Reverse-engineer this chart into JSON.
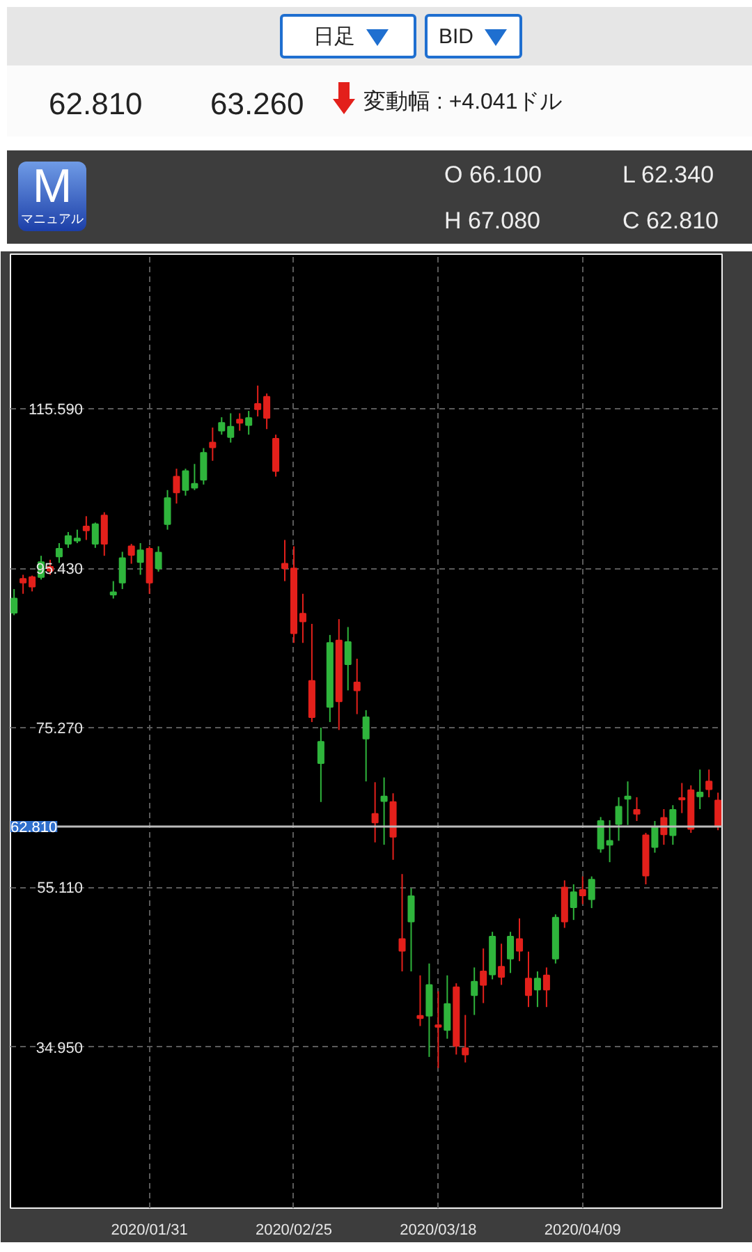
{
  "chart_data": {
    "type": "candlestick",
    "categories": [
      null,
      null,
      null,
      null,
      null,
      null,
      null,
      null,
      null,
      null,
      null,
      null,
      null,
      null,
      null,
      "2020/01/31",
      null,
      null,
      null,
      null,
      null,
      null,
      null,
      null,
      null,
      null,
      null,
      null,
      null,
      null,
      null,
      "2020/02/25",
      null,
      null,
      null,
      null,
      null,
      null,
      null,
      null,
      null,
      null,
      null,
      null,
      null,
      null,
      null,
      "2020/03/18",
      null,
      null,
      null,
      null,
      null,
      null,
      null,
      null,
      null,
      null,
      null,
      null,
      null,
      null,
      null,
      "2020/04/09",
      null,
      null,
      null,
      null,
      null,
      null,
      null,
      null,
      null,
      null,
      null,
      null,
      null,
      null,
      null
    ],
    "ohlc": [
      [
        89.8,
        92.8,
        89.5,
        91.6
      ],
      [
        94.1,
        94.6,
        92.2,
        93.6
      ],
      [
        94.3,
        94.5,
        92.5,
        93.1
      ],
      [
        94.3,
        97.0,
        94.0,
        96.2
      ],
      [
        95.6,
        96.5,
        94.6,
        95.1
      ],
      [
        96.9,
        98.6,
        96.1,
        97.9
      ],
      [
        98.5,
        100.0,
        98.0,
        99.5
      ],
      [
        98.9,
        100.3,
        98.6,
        99.2
      ],
      [
        100.7,
        102.0,
        99.0,
        100.2
      ],
      [
        98.5,
        101.2,
        98.0,
        101.0
      ],
      [
        102.1,
        102.5,
        97.0,
        98.5
      ],
      [
        92.1,
        93.8,
        91.6,
        92.4
      ],
      [
        93.6,
        97.5,
        92.8,
        96.7
      ],
      [
        98.2,
        98.5,
        96.0,
        97.1
      ],
      [
        96.2,
        98.6,
        94.6,
        97.7
      ],
      [
        97.9,
        98.2,
        92.2,
        93.6
      ],
      [
        95.4,
        98.2,
        95.0,
        97.4
      ],
      [
        101.0,
        105.3,
        100.3,
        104.3
      ],
      [
        107.0,
        108.0,
        103.6,
        105.0
      ],
      [
        105.3,
        108.0,
        104.6,
        107.7
      ],
      [
        105.6,
        108.6,
        105.3,
        106.1
      ],
      [
        106.6,
        110.6,
        106.0,
        110.0
      ],
      [
        111.3,
        113.2,
        109.0,
        110.7
      ],
      [
        112.8,
        114.5,
        112.3,
        113.8
      ],
      [
        112.0,
        115.0,
        111.3,
        113.3
      ],
      [
        114.2,
        115.0,
        112.8,
        113.8
      ],
      [
        113.5,
        115.3,
        112.3,
        114.4
      ],
      [
        116.2,
        118.5,
        114.6,
        115.5
      ],
      [
        117.1,
        117.5,
        113.0,
        114.4
      ],
      [
        111.8,
        112.3,
        107.0,
        107.7
      ],
      [
        96.0,
        99.0,
        93.8,
        95.4
      ],
      [
        95.4,
        98.2,
        86.0,
        87.2
      ],
      [
        89.7,
        92.2,
        86.0,
        88.7
      ],
      [
        81.2,
        88.4,
        76.0,
        76.6
      ],
      [
        70.8,
        75.3,
        65.9,
        73.5
      ],
      [
        77.9,
        87.0,
        76.0,
        86.0
      ],
      [
        86.3,
        89.0,
        75.0,
        78.6
      ],
      [
        83.3,
        88.0,
        80.0,
        86.1
      ],
      [
        81.0,
        84.0,
        77.0,
        80.0
      ],
      [
        73.9,
        77.5,
        68.5,
        76.6
      ],
      [
        64.4,
        68.4,
        60.8,
        63.3
      ],
      [
        66.0,
        69.0,
        60.5,
        66.6
      ],
      [
        65.9,
        67.0,
        58.6,
        61.5
      ],
      [
        48.6,
        56.8,
        44.5,
        47.1
      ],
      [
        50.8,
        55.0,
        44.5,
        54.0
      ],
      [
        38.9,
        44.0,
        37.6,
        38.6
      ],
      [
        38.9,
        45.5,
        33.7,
        42.8
      ],
      [
        37.7,
        42.0,
        32.3,
        37.5
      ],
      [
        37.1,
        44.0,
        36.0,
        40.4
      ],
      [
        42.5,
        43.0,
        34.0,
        35.1
      ],
      [
        34.8,
        39.0,
        33.0,
        34.0
      ],
      [
        41.5,
        45.0,
        39.0,
        43.2
      ],
      [
        44.5,
        47.4,
        40.5,
        42.8
      ],
      [
        44.1,
        49.5,
        43.5,
        48.9
      ],
      [
        45.1,
        48.0,
        42.8,
        43.8
      ],
      [
        46.1,
        49.5,
        44.3,
        48.9
      ],
      [
        48.6,
        51.2,
        45.8,
        47.1
      ],
      [
        43.6,
        47.0,
        40.0,
        41.5
      ],
      [
        42.2,
        44.5,
        40.0,
        43.6
      ],
      [
        44.0,
        45.0,
        40.0,
        42.2
      ],
      [
        46.1,
        51.7,
        45.5,
        51.3
      ],
      [
        55.1,
        56.0,
        50.0,
        50.8
      ],
      [
        52.6,
        55.5,
        51.0,
        54.5
      ],
      [
        54.8,
        56.5,
        53.0,
        54.1
      ],
      [
        53.6,
        56.5,
        52.5,
        56.1
      ],
      [
        60.0,
        64.0,
        59.5,
        63.5
      ],
      [
        60.5,
        63.6,
        58.3,
        61.0
      ],
      [
        63.1,
        66.5,
        61.0,
        65.3
      ],
      [
        66.3,
        68.5,
        63.0,
        66.6
      ],
      [
        64.9,
        66.5,
        63.5,
        64.4
      ],
      [
        61.7,
        62.0,
        55.5,
        56.6
      ],
      [
        60.2,
        63.5,
        59.5,
        62.8
      ],
      [
        63.9,
        65.0,
        60.5,
        61.8
      ],
      [
        61.7,
        65.5,
        60.5,
        64.9
      ],
      [
        66.4,
        68.3,
        64.5,
        66.2
      ],
      [
        67.4,
        68.0,
        62.0,
        62.5
      ],
      [
        66.6,
        70.0,
        65.0,
        67.1
      ],
      [
        68.5,
        70.0,
        66.5,
        67.5
      ],
      [
        66.1,
        67.08,
        62.34,
        62.81
      ]
    ],
    "colors": [
      "#2fb53c",
      "#e3201b",
      "#e3201b",
      "#2fb53c",
      "#e3201b",
      "#2fb53c",
      "#2fb53c",
      "#2fb53c",
      "#e3201b",
      "#2fb53c",
      "#e3201b",
      "#2fb53c",
      "#2fb53c",
      "#e3201b",
      "#2fb53c",
      "#e3201b",
      "#2fb53c",
      "#2fb53c",
      "#e3201b",
      "#2fb53c",
      "#2fb53c",
      "#2fb53c",
      "#e3201b",
      "#2fb53c",
      "#2fb53c",
      "#e3201b",
      "#2fb53c",
      "#e3201b",
      "#e3201b",
      "#e3201b",
      "#e3201b",
      "#e3201b",
      "#e3201b",
      "#e3201b",
      "#2fb53c",
      "#2fb53c",
      "#e3201b",
      "#2fb53c",
      "#e3201b",
      "#2fb53c",
      "#e3201b",
      "#2fb53c",
      "#e3201b",
      "#e3201b",
      "#2fb53c",
      "#e3201b",
      "#2fb53c",
      "#e3201b",
      "#2fb53c",
      "#e3201b",
      "#e3201b",
      "#2fb53c",
      "#e3201b",
      "#2fb53c",
      "#e3201b",
      "#2fb53c",
      "#e3201b",
      "#e3201b",
      "#2fb53c",
      "#e3201b",
      "#2fb53c",
      "#e3201b",
      "#2fb53c",
      "#e3201b",
      "#2fb53c",
      "#2fb53c",
      "#2fb53c",
      "#2fb53c",
      "#2fb53c",
      "#e3201b",
      "#e3201b",
      "#2fb53c",
      "#e3201b",
      "#2fb53c",
      "#e3201b",
      "#e3201b",
      "#2fb53c",
      "#e3201b",
      "#e3201b"
    ],
    "ylim": [
      14.6,
      135.1
    ],
    "yticks": [
      {
        "value": 34.95,
        "label": "34.950"
      },
      {
        "value": 55.11,
        "label": "55.110"
      },
      {
        "value": 75.27,
        "label": "75.270"
      },
      {
        "value": 95.43,
        "label": "95.430"
      },
      {
        "value": 115.59,
        "label": "115.590"
      }
    ],
    "grid": true,
    "ref_lines": [
      {
        "axis": "y",
        "value": 62.81,
        "label": "62.810",
        "color": "#bbbbbb"
      }
    ],
    "annotations": [
      "日足",
      "BID",
      "62.810",
      "63.260",
      "変動幅 : +4.041ドル",
      "O 66.100",
      "L 62.340",
      "H 67.080",
      "C 62.810",
      "M",
      "マニュアル"
    ]
  }
}
